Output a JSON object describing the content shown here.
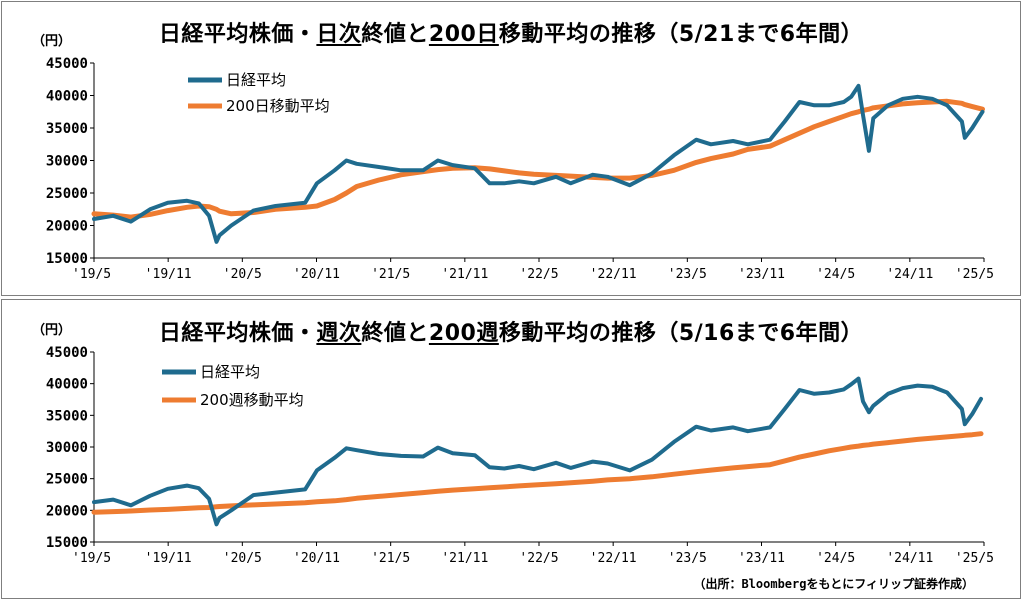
{
  "colors": {
    "nikkei": "#1f6b8e",
    "ma": "#ee7c31",
    "axis": "#000000",
    "frame": "#7f7f7f"
  },
  "chart_data": [
    {
      "type": "line",
      "title": "日経平均株価・日次終値と200日移動平均の推移（5/21まで6年間）",
      "title_parts": [
        "日経平均株価・",
        "日次",
        "終値と",
        "200日",
        "移動平均の推移（5/21まで6年間）"
      ],
      "ylabel": "（円）",
      "ylim": [
        15000,
        45000
      ],
      "yticks": [
        15000,
        20000,
        25000,
        30000,
        35000,
        40000,
        45000
      ],
      "x_tick_labels": [
        "'19/5",
        "'19/11",
        "'20/5",
        "'20/11",
        "'21/5",
        "'21/11",
        "'22/5",
        "'22/11",
        "'23/5",
        "'23/11",
        "'24/5",
        "'24/11",
        "'25/5"
      ],
      "legend": [
        "日経平均",
        "200日移動平均"
      ],
      "legend_position": "top-left",
      "x": [
        2019.37,
        2019.5,
        2019.62,
        2019.75,
        2019.87,
        2020.0,
        2020.08,
        2020.15,
        2020.2,
        2020.22,
        2020.3,
        2020.45,
        2020.6,
        2020.8,
        2020.88,
        2021.0,
        2021.08,
        2021.15,
        2021.3,
        2021.45,
        2021.6,
        2021.7,
        2021.8,
        2021.95,
        2022.05,
        2022.15,
        2022.25,
        2022.35,
        2022.5,
        2022.6,
        2022.75,
        2022.85,
        2023.0,
        2023.15,
        2023.3,
        2023.45,
        2023.55,
        2023.7,
        2023.8,
        2023.95,
        2024.05,
        2024.15,
        2024.25,
        2024.35,
        2024.45,
        2024.5,
        2024.55,
        2024.58,
        2024.62,
        2024.65,
        2024.75,
        2024.85,
        2024.95,
        2025.05,
        2025.15,
        2025.25,
        2025.27,
        2025.32,
        2025.39
      ],
      "series": [
        {
          "name": "日経平均",
          "values": [
            21000,
            21500,
            20600,
            22500,
            23500,
            23800,
            23400,
            21500,
            17500,
            18500,
            20000,
            22300,
            23000,
            23500,
            26500,
            28500,
            30000,
            29500,
            29000,
            28500,
            28500,
            30000,
            29300,
            28800,
            26500,
            26500,
            26800,
            26500,
            27500,
            26500,
            27800,
            27500,
            26200,
            28000,
            30800,
            33200,
            32500,
            33000,
            32500,
            33200,
            36000,
            39000,
            38500,
            38500,
            39000,
            39800,
            41500,
            37000,
            31500,
            36500,
            38500,
            39500,
            39800,
            39500,
            38500,
            36000,
            33500,
            35000,
            37500
          ]
        },
        {
          "name": "200日移動平均",
          "values": [
            21800,
            21600,
            21300,
            21700,
            22300,
            22800,
            23000,
            22900,
            22500,
            22200,
            21800,
            22000,
            22500,
            22800,
            23000,
            24000,
            25000,
            26000,
            27000,
            27800,
            28300,
            28600,
            28800,
            28900,
            28700,
            28400,
            28100,
            27900,
            27700,
            27600,
            27400,
            27300,
            27300,
            27700,
            28500,
            29700,
            30300,
            31000,
            31700,
            32200,
            33200,
            34200,
            35200,
            36000,
            36800,
            37200,
            37500,
            37700,
            37900,
            38100,
            38400,
            38700,
            38900,
            39000,
            39100,
            38800,
            38600,
            38300,
            37900
          ]
        }
      ]
    },
    {
      "type": "line",
      "title": "日経平均株価・週次終値と200週移動平均の推移（5/16まで6年間）",
      "title_parts": [
        "日経平均株価・",
        "週次",
        "終値と",
        "200週",
        "移動平均の推移（5/16まで6年間）"
      ],
      "ylabel": "（円）",
      "ylim": [
        15000,
        45000
      ],
      "yticks": [
        15000,
        20000,
        25000,
        30000,
        35000,
        40000,
        45000
      ],
      "x_tick_labels": [
        "'19/5",
        "'19/11",
        "'20/5",
        "'20/11",
        "'21/5",
        "'21/11",
        "'22/5",
        "'22/11",
        "'23/5",
        "'23/11",
        "'24/5",
        "'24/11",
        "'25/5"
      ],
      "legend": [
        "日経平均",
        "200週移動平均"
      ],
      "legend_position": "top-left",
      "x": [
        2019.37,
        2019.5,
        2019.62,
        2019.75,
        2019.87,
        2020.0,
        2020.08,
        2020.15,
        2020.2,
        2020.22,
        2020.3,
        2020.45,
        2020.6,
        2020.8,
        2020.88,
        2021.0,
        2021.08,
        2021.15,
        2021.3,
        2021.45,
        2021.6,
        2021.7,
        2021.8,
        2021.95,
        2022.05,
        2022.15,
        2022.25,
        2022.35,
        2022.5,
        2022.6,
        2022.75,
        2022.85,
        2023.0,
        2023.15,
        2023.3,
        2023.45,
        2023.55,
        2023.7,
        2023.8,
        2023.95,
        2024.05,
        2024.15,
        2024.25,
        2024.35,
        2024.45,
        2024.5,
        2024.55,
        2024.58,
        2024.62,
        2024.65,
        2024.75,
        2024.85,
        2024.95,
        2025.05,
        2025.15,
        2025.25,
        2025.27,
        2025.32,
        2025.38
      ],
      "series": [
        {
          "name": "日経平均",
          "values": [
            21300,
            21700,
            20800,
            22300,
            23400,
            23900,
            23500,
            21800,
            17800,
            18800,
            20000,
            22400,
            22800,
            23300,
            26300,
            28300,
            29800,
            29500,
            28900,
            28600,
            28500,
            29900,
            29000,
            28700,
            26800,
            26600,
            27000,
            26500,
            27500,
            26700,
            27700,
            27400,
            26300,
            28000,
            30800,
            33200,
            32600,
            33100,
            32500,
            33100,
            36000,
            39000,
            38400,
            38600,
            39100,
            39900,
            40800,
            37200,
            35500,
            36500,
            38400,
            39300,
            39700,
            39500,
            38600,
            36000,
            33600,
            35200,
            37600
          ]
        },
        {
          "name": "200週移動平均",
          "values": [
            19700,
            19800,
            19900,
            20050,
            20150,
            20300,
            20400,
            20450,
            20550,
            20600,
            20700,
            20850,
            21000,
            21200,
            21350,
            21500,
            21700,
            21900,
            22200,
            22500,
            22800,
            23000,
            23200,
            23400,
            23550,
            23700,
            23850,
            24000,
            24200,
            24350,
            24600,
            24800,
            25000,
            25300,
            25700,
            26100,
            26350,
            26700,
            26900,
            27200,
            27800,
            28400,
            28900,
            29400,
            29800,
            30000,
            30150,
            30250,
            30350,
            30450,
            30700,
            30950,
            31200,
            31400,
            31600,
            31800,
            31850,
            31950,
            32100
          ]
        }
      ]
    }
  ],
  "footer": {
    "source": "（出所：Bloombergをもとにフィリップ証券作成）"
  }
}
